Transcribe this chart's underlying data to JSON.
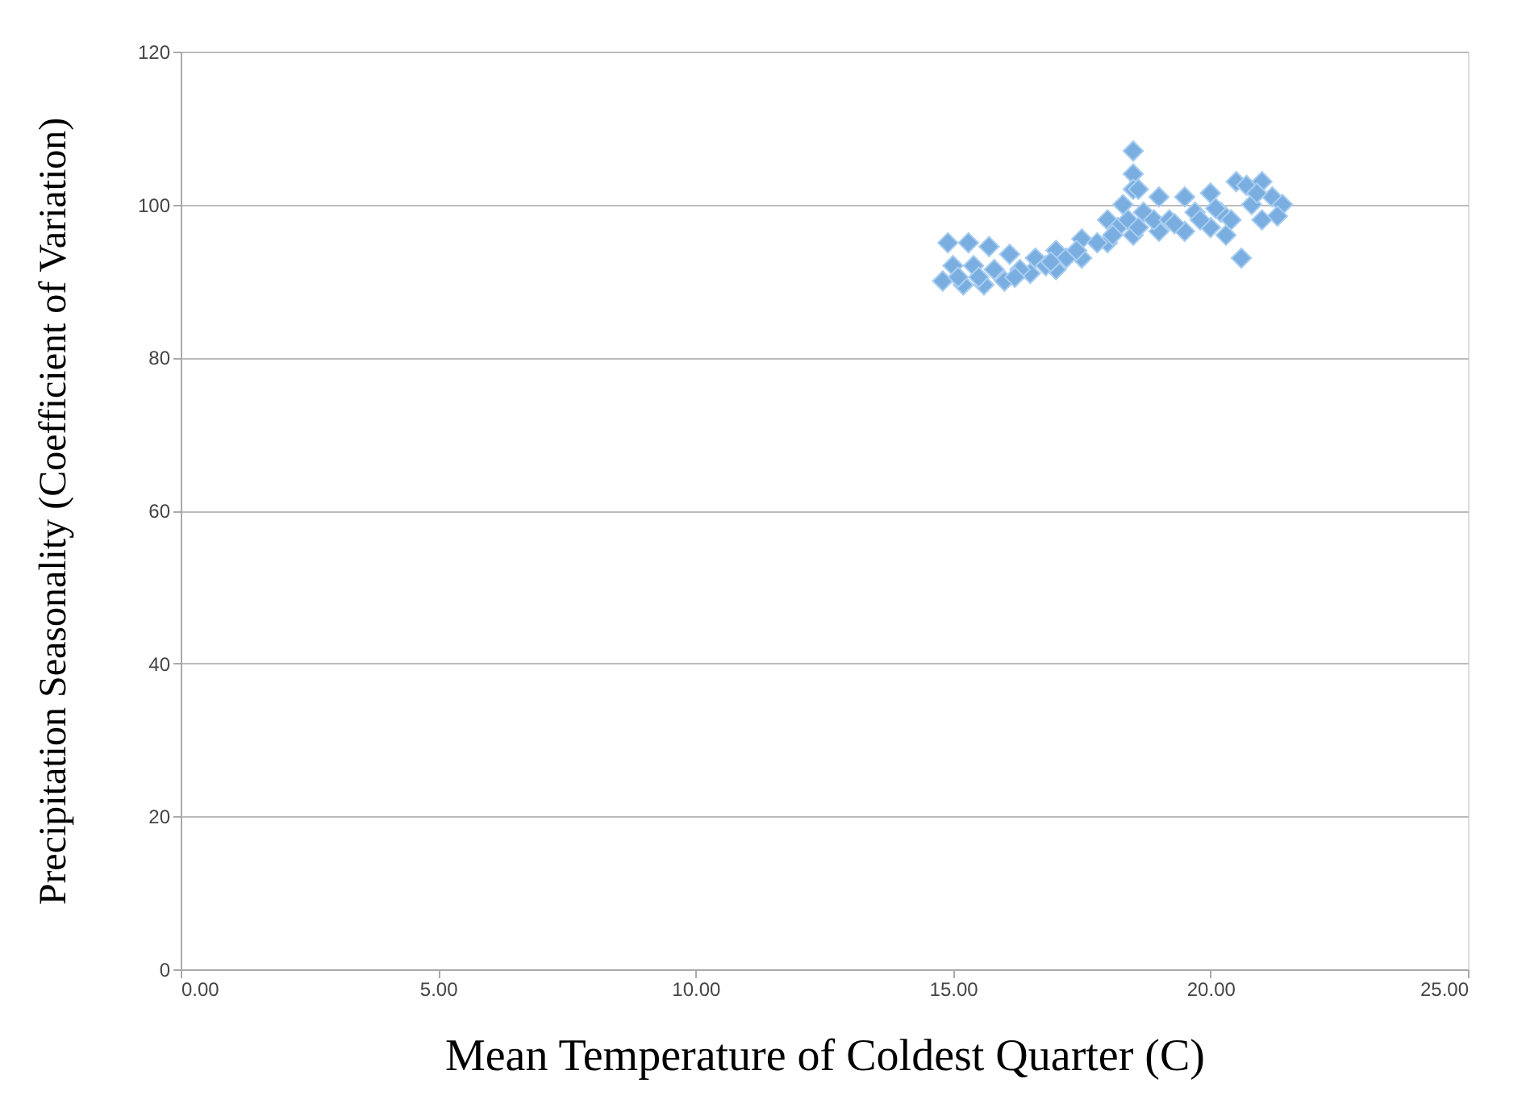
{
  "chart_data": {
    "type": "scatter",
    "xlabel": "Mean Temperature of Coldest Quarter (C)",
    "ylabel": "Precipitation Seasonality (Coefficient of Variation)",
    "x": [
      14.8,
      15.2,
      15.6,
      16.0,
      16.5,
      17.0,
      17.5,
      18.0,
      18.5,
      19.0,
      19.5,
      20.0,
      20.3,
      20.6,
      14.9,
      15.3,
      15.7,
      16.1,
      16.6,
      17.0,
      17.5,
      18.0,
      18.3,
      18.5,
      18.5,
      18.5,
      18.6,
      19.0,
      19.5,
      20.0,
      20.5,
      20.7,
      21.0,
      21.2,
      21.4,
      21.3,
      21.0,
      15.0,
      15.4,
      15.8,
      16.3,
      16.8,
      17.2,
      17.8,
      18.2,
      18.4,
      18.7,
      18.9,
      19.2,
      19.7,
      20.2,
      20.4,
      20.8,
      15.1,
      15.5,
      16.2,
      16.9,
      17.4,
      18.1,
      18.6,
      19.3,
      19.8,
      20.1,
      20.9
    ],
    "values": [
      90,
      89.5,
      89.5,
      90,
      91,
      91.5,
      93,
      95,
      96,
      96.5,
      96.5,
      97,
      96,
      93,
      95,
      95,
      94.5,
      93.5,
      93,
      94,
      95.5,
      98,
      100,
      107,
      104,
      102,
      102,
      101,
      101,
      101.5,
      103,
      102.5,
      103,
      101,
      100,
      98.5,
      98,
      92,
      92,
      91.5,
      91.5,
      92,
      93,
      95,
      97,
      98,
      99,
      98,
      98,
      99,
      99,
      98,
      100,
      90.5,
      90.5,
      90.5,
      92.5,
      94,
      96,
      97,
      97.5,
      98,
      99.5,
      101.5
    ],
    "color": "#7aaee0",
    "marker": "diamond",
    "xlim": [
      0,
      25
    ],
    "xticks": [
      {
        "value": 0,
        "label": "0.00"
      },
      {
        "value": 5,
        "label": "5.00"
      },
      {
        "value": 10,
        "label": "10.00"
      },
      {
        "value": 15,
        "label": "15.00"
      },
      {
        "value": 20,
        "label": "20.00"
      },
      {
        "value": 25,
        "label": "25.00"
      }
    ],
    "ylim": [
      0,
      120
    ],
    "yticks": [
      0,
      20,
      40,
      60,
      80,
      100,
      120
    ],
    "grid": "y"
  }
}
